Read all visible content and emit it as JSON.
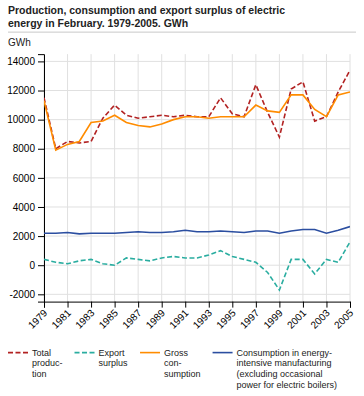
{
  "chart_data": {
    "type": "line",
    "title": "Production, consumption and export surplus of electric\nenergy in February. 1979-2005. GWh",
    "ylabel": "GWh",
    "x": [
      1979,
      1980,
      1981,
      1982,
      1983,
      1984,
      1985,
      1986,
      1987,
      1988,
      1989,
      1990,
      1991,
      1992,
      1993,
      1994,
      1995,
      1996,
      1997,
      1998,
      1999,
      2000,
      2001,
      2002,
      2003,
      2004,
      2005
    ],
    "xlim": [
      1979,
      2005
    ],
    "xticks": [
      1979,
      1981,
      1983,
      1985,
      1987,
      1989,
      1991,
      1993,
      1995,
      1997,
      1999,
      2001,
      2003,
      2005
    ],
    "ylim": [
      -2500,
      14500
    ],
    "yticks": [
      -2000,
      0,
      2000,
      4000,
      6000,
      8000,
      10000,
      12000,
      14000
    ],
    "grid": true,
    "legend": "bottom",
    "series": [
      {
        "name": "Total\nproduc-\ntion",
        "color": "#B22222",
        "line_style": "dashed",
        "values": [
          11500,
          8000,
          8500,
          8400,
          8500,
          10100,
          11000,
          10300,
          10100,
          10200,
          10300,
          10200,
          10300,
          10200,
          10200,
          11500,
          10400,
          10200,
          12400,
          10500,
          8800,
          12100,
          12600,
          9900,
          10200,
          11900,
          13400
        ]
      },
      {
        "name": "Export\nsurplus",
        "color": "#2AADA0",
        "line_style": "dashed",
        "values": [
          400,
          200,
          100,
          300,
          400,
          100,
          0,
          500,
          400,
          300,
          500,
          600,
          500,
          500,
          700,
          1000,
          600,
          400,
          200,
          -500,
          -1700,
          400,
          400,
          -600,
          400,
          200,
          1600
        ]
      },
      {
        "name": "Gross\ncon-\nsumption",
        "color": "#FF8C00",
        "line_style": "solid",
        "values": [
          11300,
          7900,
          8300,
          8500,
          9800,
          9900,
          10300,
          9800,
          9600,
          9500,
          9700,
          10000,
          10200,
          10200,
          10100,
          10200,
          10200,
          10200,
          11000,
          10600,
          10500,
          11700,
          11700,
          10700,
          10200,
          11700,
          11900
        ]
      },
      {
        "name": "Consumption in energy-\nintensive manufacturing\n(excluding occasional\npower for electric boilers)",
        "color": "#2B4EA0",
        "line_style": "solid",
        "values": [
          2200,
          2200,
          2250,
          2150,
          2200,
          2200,
          2200,
          2250,
          2300,
          2250,
          2250,
          2300,
          2400,
          2300,
          2300,
          2350,
          2300,
          2250,
          2350,
          2350,
          2200,
          2350,
          2450,
          2450,
          2200,
          2400,
          2650
        ]
      }
    ]
  }
}
